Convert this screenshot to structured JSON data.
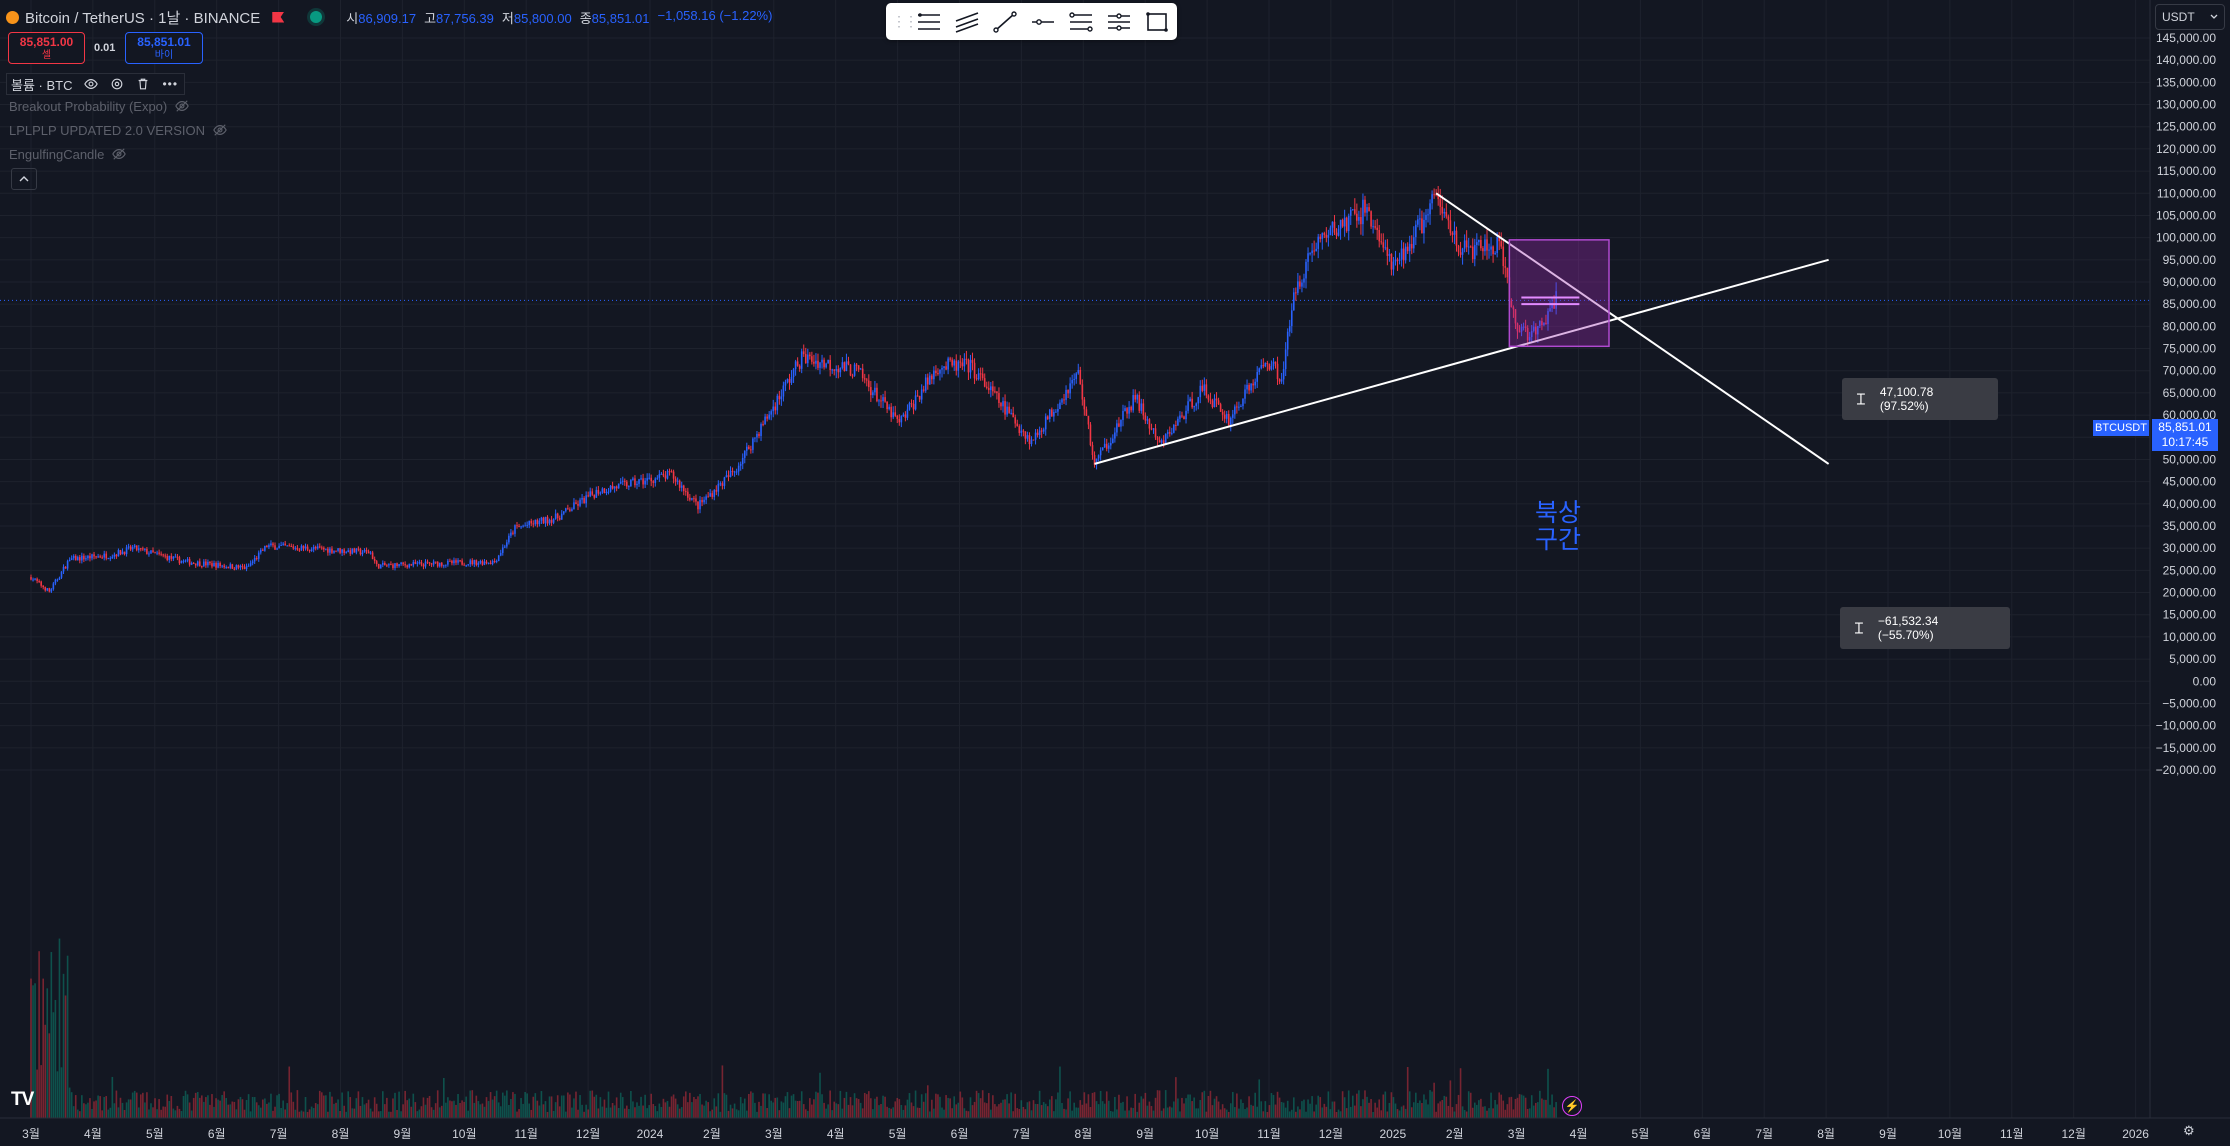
{
  "header": {
    "symbol": "Bitcoin / TetherUS · 1날 · BINANCE",
    "ohlc": [
      {
        "label": "시",
        "value": "86,909.17"
      },
      {
        "label": "고",
        "value": "87,756.39"
      },
      {
        "label": "저",
        "value": "85,800.00"
      },
      {
        "label": "종",
        "value": "85,851.01"
      }
    ],
    "change": "−1,058.16 (−1.22%)"
  },
  "trade": {
    "sell_price": "85,851.00",
    "sell_label": "셀",
    "spread": "0.01",
    "buy_price": "85,851.01",
    "buy_label": "바이"
  },
  "indicators": {
    "volume_label": "볼륨 · BTC",
    "items": [
      "Breakout Probability (Expo)",
      "LPLPLP UPDATED 2.0 VERSION",
      "EngulfingCandle"
    ]
  },
  "toolbar": {
    "icons": [
      "horizontal-lines-icon",
      "parallel-channel-icon",
      "trend-line-icon",
      "horizontal-ray-icon",
      "fib-retracement-icon",
      "fib-extension-icon",
      "rectangle-icon"
    ]
  },
  "currency_selector": "USDT",
  "price_axis": {
    "labels": [
      "145,000.00",
      "140,000.00",
      "135,000.00",
      "130,000.00",
      "125,000.00",
      "120,000.00",
      "115,000.00",
      "110,000.00",
      "105,000.00",
      "100,000.00",
      "95,000.00",
      "90,000.00",
      "85,000.00",
      "80,000.00",
      "75,000.00",
      "70,000.00",
      "65,000.00",
      "60,000.00",
      "55,000.00",
      "50,000.00",
      "45,000.00",
      "40,000.00",
      "35,000.00",
      "30,000.00",
      "25,000.00",
      "20,000.00",
      "15,000.00",
      "10,000.00",
      "5,000.00",
      "0.00",
      "−5,000.00",
      "−10,000.00",
      "−15,000.00",
      "−20,000.00"
    ]
  },
  "time_axis": {
    "labels": [
      "3월",
      "4월",
      "5월",
      "6월",
      "7월",
      "8월",
      "9월",
      "10월",
      "11월",
      "12월",
      "2024",
      "2월",
      "3월",
      "4월",
      "5월",
      "6월",
      "7월",
      "8월",
      "9월",
      "10월",
      "11월",
      "12월",
      "2025",
      "2월",
      "3월",
      "4월",
      "5월",
      "6월",
      "7월",
      "8월",
      "9월",
      "10월",
      "11월",
      "12월",
      "2026"
    ]
  },
  "current_price": {
    "symbol_tag": "BTCUSDT",
    "price": "85,851.01",
    "countdown": "10:17:45"
  },
  "measures": [
    {
      "text": "47,100.78 (97.52%)"
    },
    {
      "text": "−61,532.34 (−55.70%)"
    }
  ],
  "annotation": {
    "line1": "북상",
    "line2": "구간"
  },
  "colors": {
    "background": "#131722",
    "up": "#089981",
    "down": "#f23645",
    "accent": "#2962ff",
    "box": "#9c27b0"
  },
  "chart_data": {
    "type": "candlestick",
    "title": "Bitcoin / TetherUS · 1날 · BINANCE",
    "x": [
      "2023-03",
      "2023-04",
      "2023-05",
      "2023-06",
      "2023-07",
      "2023-08",
      "2023-09",
      "2023-10",
      "2023-11",
      "2023-12",
      "2024-01",
      "2024-02",
      "2024-03",
      "2024-04",
      "2024-05",
      "2024-06",
      "2024-07",
      "2024-08",
      "2024-09",
      "2024-10",
      "2024-11",
      "2024-12",
      "2025-01",
      "2025-02",
      "2025-03"
    ],
    "close_path": [
      [
        "2023-03-01",
        23500
      ],
      [
        "2023-03-10",
        20200
      ],
      [
        "2023-03-20",
        27500
      ],
      [
        "2023-04-10",
        28500
      ],
      [
        "2023-04-20",
        30000
      ],
      [
        "2023-05-15",
        27000
      ],
      [
        "2023-06-15",
        25500
      ],
      [
        "2023-06-25",
        30500
      ],
      [
        "2023-07-15",
        30000
      ],
      [
        "2023-08-15",
        29000
      ],
      [
        "2023-08-18",
        26000
      ],
      [
        "2023-09-15",
        26500
      ],
      [
        "2023-10-15",
        27000
      ],
      [
        "2023-10-25",
        34500
      ],
      [
        "2023-11-15",
        37000
      ],
      [
        "2023-12-05",
        43000
      ],
      [
        "2024-01-10",
        46500
      ],
      [
        "2024-01-23",
        39500
      ],
      [
        "2024-02-10",
        47500
      ],
      [
        "2024-02-28",
        61000
      ],
      [
        "2024-03-14",
        73000
      ],
      [
        "2024-04-10",
        70000
      ],
      [
        "2024-05-01",
        58000
      ],
      [
        "2024-05-20",
        71000
      ],
      [
        "2024-06-05",
        71000
      ],
      [
        "2024-07-05",
        54000
      ],
      [
        "2024-07-28",
        69500
      ],
      [
        "2024-08-05",
        49000
      ],
      [
        "2024-08-25",
        64000
      ],
      [
        "2024-09-06",
        53000
      ],
      [
        "2024-09-27",
        66000
      ],
      [
        "2024-10-10",
        59000
      ],
      [
        "2024-10-29",
        72500
      ],
      [
        "2024-11-05",
        68500
      ],
      [
        "2024-11-12",
        89000
      ],
      [
        "2024-11-22",
        99000
      ],
      [
        "2024-12-17",
        106500
      ],
      [
        "2024-12-30",
        92500
      ],
      [
        "2025-01-20",
        109000
      ],
      [
        "2025-02-02",
        97000
      ],
      [
        "2025-02-20",
        98000
      ],
      [
        "2025-02-28",
        80000
      ],
      [
        "2025-03-10",
        78000
      ],
      [
        "2025-03-20",
        85851
      ]
    ],
    "ylim": [
      -20000,
      145000
    ],
    "volume": "volume histogram at bottom",
    "drawings": {
      "support_line": [
        [
          "2024-08-05",
          49000
        ],
        [
          "2025-08-01",
          95000
        ]
      ],
      "resistance_line": [
        [
          "2025-01-20",
          110000
        ],
        [
          "2025-08-01",
          49000
        ]
      ],
      "box": {
        "x": [
          "2025-02-25",
          "2025-04-15"
        ],
        "y": [
          75500,
          99500
        ]
      },
      "box_lines": [
        85000,
        86500
      ]
    }
  }
}
